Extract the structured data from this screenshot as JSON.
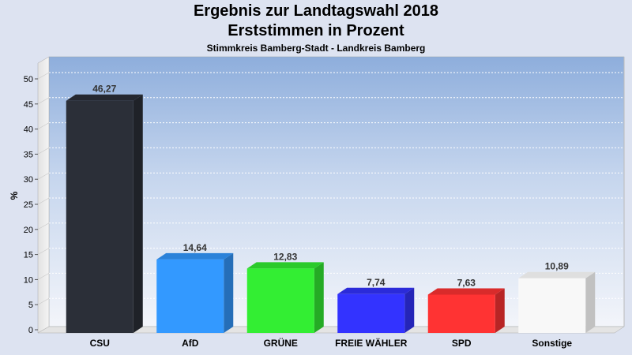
{
  "chart_data": {
    "type": "bar",
    "title": "Ergebnis zur Landtagswahl 2018",
    "subtitle": "Erststimmen in Prozent",
    "subsubtitle": "Stimmkreis Bamberg-Stadt - Landkreis Bamberg",
    "ylabel": "%",
    "xlabel": "",
    "ylim": [
      0,
      50
    ],
    "yticks": [
      0,
      5,
      10,
      15,
      20,
      25,
      30,
      35,
      40,
      45,
      50
    ],
    "grid": true,
    "categories": [
      "CSU",
      "AfD",
      "GRÜNE",
      "FREIE WÄHLER",
      "SPD",
      "Sonstige"
    ],
    "values": [
      46.27,
      14.64,
      12.83,
      7.74,
      7.63,
      10.89
    ],
    "value_labels": [
      "46,27",
      "14,64",
      "12,83",
      "7,74",
      "7,63",
      "10,89"
    ],
    "colors": [
      "#2b2f38",
      "#3399ff",
      "#33ee33",
      "#3333ff",
      "#ff3333",
      "#f8f8f8"
    ]
  }
}
